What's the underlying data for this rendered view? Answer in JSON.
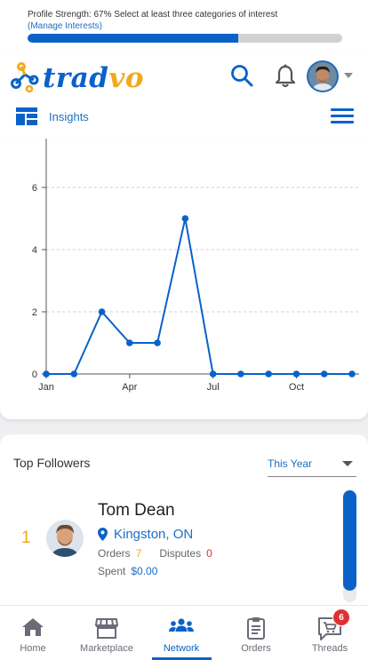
{
  "profile": {
    "strength_text": "Profile Strength: 67% Select at least three categories of interest",
    "manage_link": "(Manage Interests)",
    "strength_value": 0.67
  },
  "header": {
    "logo_text_primary": "trad",
    "logo_text_accent": "vo",
    "insights_label": "Insights",
    "icons": [
      "search-icon",
      "bell-icon",
      "avatar",
      "chevron-down-icon",
      "dashboard-icon",
      "menu-icon"
    ]
  },
  "chart_data": {
    "type": "line",
    "x": [
      "Jan",
      "Feb",
      "Mar",
      "Apr",
      "May",
      "Jun",
      "Jul",
      "Aug",
      "Sep",
      "Oct",
      "Nov",
      "Dec"
    ],
    "x_ticks": [
      "Jan",
      "Apr",
      "Jul",
      "Oct"
    ],
    "y": [
      0,
      0,
      2,
      1,
      1,
      5,
      0,
      0,
      0,
      0,
      0,
      0
    ],
    "y_ticks": [
      "0",
      "2",
      "4",
      "6"
    ],
    "ylim": [
      0,
      6
    ],
    "grid": true,
    "color": "#0a62c9"
  },
  "followers": {
    "title": "Top Followers",
    "period": "This Year",
    "items": [
      {
        "rank": "1",
        "name": "Tom Dean",
        "location": "Kingston, ON",
        "orders_label": "Orders",
        "orders_value": "7",
        "disputes_label": "Disputes",
        "disputes_value": "0",
        "spent_label": "Spent",
        "spent_value": "$0.00"
      }
    ]
  },
  "nav": {
    "home": "Home",
    "marketplace": "Marketplace",
    "network": "Network",
    "orders": "Orders",
    "threads": "Threads",
    "threads_badge": "6",
    "active": "network"
  },
  "colors": {
    "brand_blue": "#0a62c9",
    "brand_orange": "#f2a91c",
    "alert_red": "#e03131"
  }
}
